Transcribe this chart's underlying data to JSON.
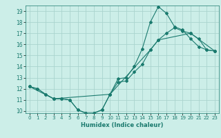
{
  "xlabel": "Humidex (Indice chaleur)",
  "background_color": "#cceee8",
  "grid_color": "#aad4ce",
  "line_color": "#1a7a6e",
  "xlim": [
    -0.5,
    23.5
  ],
  "ylim": [
    9.8,
    19.5
  ],
  "xticks": [
    0,
    1,
    2,
    3,
    4,
    5,
    6,
    7,
    8,
    9,
    10,
    11,
    12,
    13,
    14,
    15,
    16,
    17,
    18,
    19,
    20,
    21,
    22,
    23
  ],
  "yticks": [
    10,
    11,
    12,
    13,
    14,
    15,
    16,
    17,
    18,
    19
  ],
  "line1_x": [
    0,
    1,
    2,
    3,
    4,
    5,
    6,
    7,
    8,
    9,
    10,
    11,
    12,
    13,
    14,
    15,
    16,
    17,
    18,
    19,
    20,
    21,
    22,
    23
  ],
  "line1_y": [
    12.2,
    12.0,
    11.5,
    11.1,
    11.1,
    11.0,
    10.1,
    9.8,
    9.8,
    10.1,
    11.5,
    12.9,
    13.0,
    14.0,
    15.6,
    18.0,
    19.4,
    18.8,
    17.6,
    17.3,
    16.5,
    15.8,
    15.5,
    15.4
  ],
  "line2_x": [
    0,
    1,
    2,
    3,
    4,
    5,
    6,
    7,
    8,
    9,
    10,
    11,
    12,
    13,
    14,
    15,
    16,
    17,
    18,
    19,
    20,
    21,
    22,
    23
  ],
  "line2_y": [
    12.2,
    12.0,
    11.5,
    11.1,
    11.1,
    11.0,
    10.1,
    9.8,
    9.8,
    10.1,
    11.5,
    12.6,
    12.7,
    13.5,
    14.2,
    15.5,
    16.4,
    17.0,
    17.5,
    17.2,
    17.0,
    16.5,
    15.5,
    15.4
  ],
  "line3_x": [
    0,
    3,
    10,
    15,
    16,
    20,
    23
  ],
  "line3_y": [
    12.2,
    11.1,
    11.5,
    15.5,
    16.4,
    17.0,
    15.4
  ]
}
